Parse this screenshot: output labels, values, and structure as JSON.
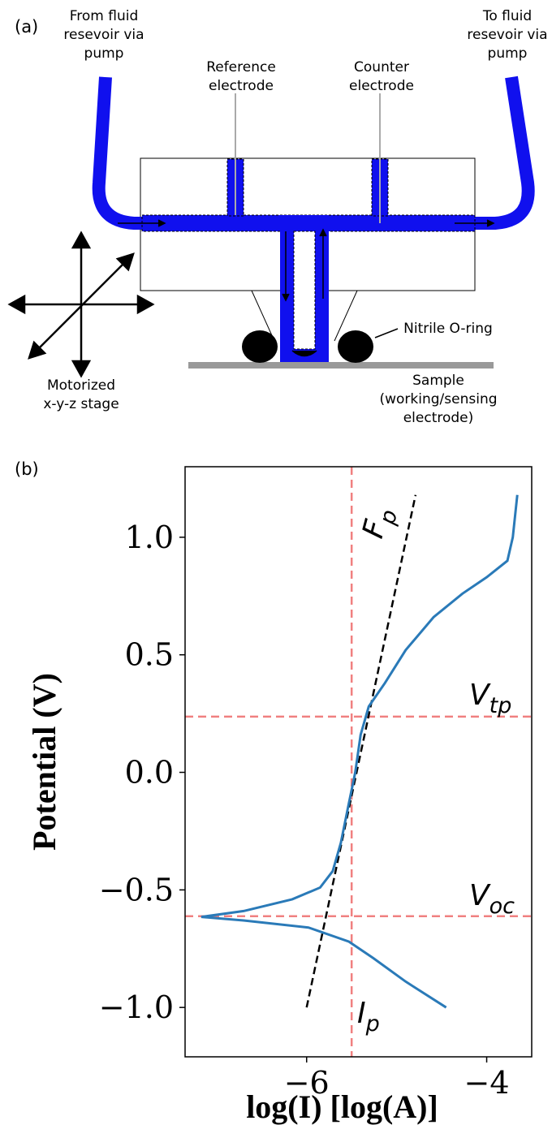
{
  "diagram": {
    "panel_label": "(a)",
    "labels": {
      "from_fluid": [
        "From fluid",
        "resevoir via",
        "pump"
      ],
      "to_fluid": [
        "To fluid",
        "resevoir via",
        "pump"
      ],
      "reference": [
        "Reference",
        "electrode"
      ],
      "counter": [
        "Counter",
        "electrode"
      ],
      "oring": [
        "Nitrile O-ring"
      ],
      "stage": [
        "Motorized",
        "x-y-z stage"
      ],
      "sample": [
        "Sample",
        "(working/sensing",
        "electrode)"
      ]
    }
  },
  "chart_data": {
    "type": "line",
    "panel_label": "(b)",
    "xlabel": "log(I) [log(A)]",
    "ylabel": "Potential (V)",
    "xlim": [
      -7.35,
      -3.5
    ],
    "ylim": [
      -1.21,
      1.3
    ],
    "xticks": [
      {
        "value": -6,
        "label": "−6"
      },
      {
        "value": -4,
        "label": "−4"
      }
    ],
    "yticks": [
      {
        "value": 1.0,
        "label": "1.0"
      },
      0.5,
      {
        "value": 0.0,
        "label": "0.0"
      },
      {
        "value": -0.5,
        "label": "−0.5"
      },
      {
        "value": -1.0,
        "label": "−1.0"
      }
    ],
    "series": [
      {
        "color": "#2a7ab8",
        "x": [
          -4.45,
          -4.9,
          -5.26,
          -5.53,
          -5.98,
          -6.7,
          -7.17,
          -6.7,
          -6.16,
          -5.85,
          -5.71,
          -5.62,
          -5.53,
          -5.46,
          -5.4,
          -5.31,
          -5.13,
          -4.9,
          -4.59,
          -4.27,
          -4.0,
          -3.77,
          -3.71,
          -3.66
        ],
        "values": [
          -1.0,
          -0.89,
          -0.79,
          -0.72,
          -0.66,
          -0.63,
          -0.615,
          -0.59,
          -0.54,
          -0.49,
          -0.42,
          -0.3,
          -0.13,
          0.0,
          0.16,
          0.28,
          0.38,
          0.52,
          0.66,
          0.76,
          0.83,
          0.9,
          1.0,
          1.18
        ]
      }
    ],
    "reference_lines": {
      "color": "#f08080",
      "x": [
        -5.5
      ],
      "y": [
        0.237,
        -0.612
      ]
    },
    "fit_line": {
      "color": "#000000",
      "x": [
        -6.0,
        -4.79
      ],
      "y": [
        -1.0,
        1.18
      ]
    },
    "annotations": [
      {
        "text": "F",
        "sub": "p"
      },
      {
        "text": "V",
        "sub": "tp"
      },
      {
        "text": "V",
        "sub": "oc"
      },
      {
        "text": "I",
        "sub": "p"
      }
    ]
  }
}
